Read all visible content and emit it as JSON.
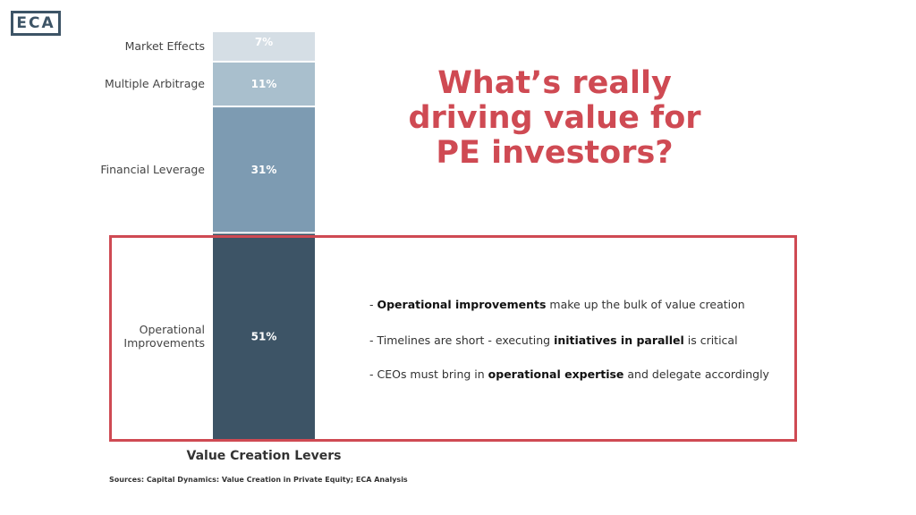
{
  "logo": "ECA",
  "title": "What’s really driving value for PE investors?",
  "bullets": [
    {
      "pre": "- ",
      "bold": "Operational improvements",
      "post": " make up the bulk of value creation"
    },
    {
      "pre": "- Timelines are short - executing ",
      "bold": "initiatives in parallel",
      "post": " is critical"
    },
    {
      "pre": "- CEOs must bring in ",
      "bold": "operational expertise",
      "post": " and delegate accordingly"
    }
  ],
  "chart_data": {
    "type": "bar",
    "stacked": true,
    "xlabel": "Value Creation Levers",
    "categories": [
      "Value Creation Levers"
    ],
    "series": [
      {
        "name": "Operational Improvements",
        "value": 51,
        "label": "51%",
        "color": "#3d5466"
      },
      {
        "name": "Financial Leverage",
        "value": 31,
        "label": "31%",
        "color": "#7d9bb2"
      },
      {
        "name": "Multiple Arbitrage",
        "value": 11,
        "label": "11%",
        "color": "#a9bfcd"
      },
      {
        "name": "Market Effects",
        "value": 7,
        "label": "7%",
        "color": "#d5dee5"
      }
    ],
    "ylim": [
      0,
      100
    ]
  },
  "source": "Sources: Capital Dynamics: Value Creation in Private Equity; ECA Analysis"
}
